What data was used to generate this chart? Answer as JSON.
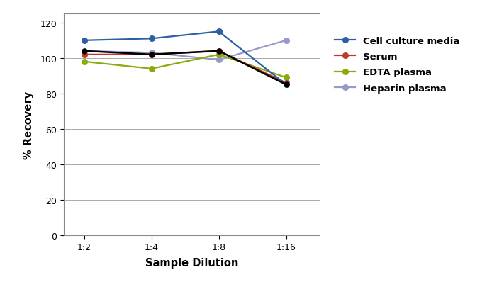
{
  "x_labels": [
    "1:2",
    "1:4",
    "1:8",
    "1:16"
  ],
  "x_positions": [
    0,
    1,
    2,
    3
  ],
  "series": [
    {
      "name": "Cell culture media",
      "color": "#2e5fa3",
      "values": [
        110,
        111,
        115,
        85
      ],
      "marker": "o",
      "linewidth": 1.6,
      "zorder": 5
    },
    {
      "name": "Serum",
      "color": "#c0392b",
      "values": [
        102,
        102,
        104,
        86
      ],
      "marker": "o",
      "linewidth": 1.6,
      "zorder": 4
    },
    {
      "name": "EDTA plasma",
      "color": "#8aab0a",
      "values": [
        98,
        94,
        102,
        89
      ],
      "marker": "o",
      "linewidth": 1.6,
      "zorder": 3
    },
    {
      "name": "Heparin plasma",
      "color": "#9898cc",
      "values": [
        104,
        103,
        99,
        110
      ],
      "marker": "o",
      "linewidth": 1.6,
      "zorder": 2
    }
  ],
  "black_overlay": {
    "values": [
      104,
      102,
      104,
      85
    ],
    "color": "#000000",
    "linewidth": 1.8,
    "zorder": 6
  },
  "title": "",
  "xlabel": "Sample Dilution",
  "ylabel": "% Recovery",
  "ylim": [
    0,
    125
  ],
  "yticks": [
    0,
    20,
    40,
    60,
    80,
    100,
    120
  ],
  "xlim": [
    -0.3,
    3.5
  ],
  "figsize": [
    6.94,
    4.06
  ],
  "dpi": 100,
  "bg_color": "#ffffff",
  "grid_color": "#aaaaaa",
  "legend_fontsize": 9.5,
  "axis_label_fontsize": 10.5,
  "tick_fontsize": 9
}
